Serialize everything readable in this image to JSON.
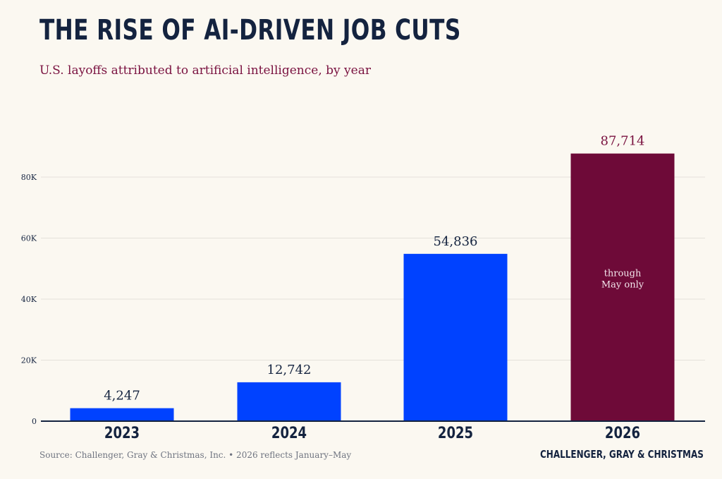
{
  "title": "THE RISE OF AI-DRIVEN JOB CUTS",
  "subtitle": "U.S. layoffs attributed to artificial intelligence, by year",
  "colors": {
    "background": "#fbf8f1",
    "primary_bar": "#0042ff",
    "highlight_bar": "#6e0a38",
    "text_dark": "#14233f",
    "accent_text": "#7a1240",
    "grid": "#e4e1da"
  },
  "chart_data": {
    "type": "bar",
    "categories": [
      "2023",
      "2024",
      "2025",
      "2026"
    ],
    "values": [
      4247,
      12742,
      54836,
      87714
    ],
    "value_labels": [
      "4,247",
      "12,742",
      "54,836",
      "87,714"
    ],
    "highlight_index": 3,
    "highlight_note": [
      "through",
      "May only"
    ],
    "ylim": [
      0,
      90000
    ],
    "yticks": [
      0,
      20000,
      40000,
      60000,
      80000
    ],
    "ytick_labels": [
      "0",
      "20K",
      "40K",
      "60K",
      "80K"
    ],
    "grid": true,
    "legend": "none",
    "xlabel": "",
    "ylabel": ""
  },
  "footer": {
    "source": "Source: Challenger, Gray & Christmas, Inc.  •  2026 reflects January–May",
    "brand": "CHALLENGER, GRAY & CHRISTMAS"
  }
}
